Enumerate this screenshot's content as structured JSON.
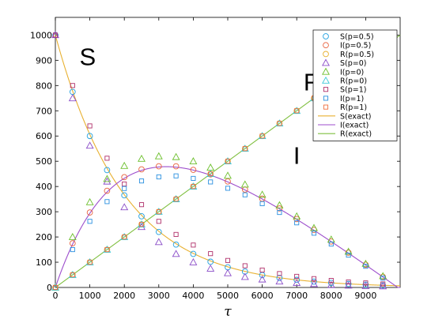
{
  "chart_data": {
    "type": "scatter",
    "xlabel": "τ",
    "ylabel": "",
    "xlim": [
      0,
      10000
    ],
    "ylim": [
      0,
      1070
    ],
    "x_ticks": [
      0,
      1000,
      2000,
      3000,
      4000,
      5000,
      6000,
      7000,
      8000,
      9000
    ],
    "y_ticks": [
      0,
      100,
      200,
      300,
      400,
      500,
      600,
      700,
      800,
      900,
      1000
    ],
    "grid": false,
    "legend_position": "top-right",
    "annotations": [
      {
        "text": "S",
        "x": 700,
        "y": 880
      },
      {
        "text": "R",
        "x": 7200,
        "y": 780
      },
      {
        "text": "I",
        "x": 6900,
        "y": 490
      }
    ],
    "x": [
      0,
      500,
      1000,
      1500,
      2000,
      2500,
      3000,
      3500,
      4000,
      4500,
      5000,
      5500,
      6000,
      6500,
      7000,
      7500,
      8000,
      8500,
      9000,
      9500
    ],
    "series": [
      {
        "name": "S(p=0.5)",
        "marker": "circle",
        "color": "#1f9fe0",
        "values": [
          1000,
          775,
          600,
          465,
          365,
          282,
          220,
          170,
          133,
          102,
          80,
          63,
          49,
          38,
          30,
          23,
          18,
          14,
          11,
          8
        ]
      },
      {
        "name": "I(p=0.5)",
        "marker": "circle",
        "color": "#e8603c",
        "values": [
          0,
          175,
          297,
          383,
          437,
          468,
          480,
          480,
          466,
          448,
          420,
          388,
          352,
          313,
          271,
          228,
          182,
          138,
          90,
          42
        ]
      },
      {
        "name": "R(p=0.5)",
        "marker": "circle",
        "color": "#e8b030",
        "values": [
          0,
          50,
          100,
          150,
          200,
          250,
          300,
          350,
          400,
          450,
          500,
          550,
          600,
          650,
          700,
          750,
          800,
          850,
          900,
          950
        ]
      },
      {
        "name": "S(p=0)",
        "marker": "triangle",
        "color": "#8a4cc8",
        "values": [
          1000,
          750,
          562,
          420,
          318,
          240,
          180,
          133,
          100,
          75,
          57,
          42,
          32,
          24,
          18,
          14,
          10,
          8,
          6,
          5
        ]
      },
      {
        "name": "I(p=0)",
        "marker": "triangle",
        "color": "#6cbf2c",
        "values": [
          0,
          200,
          338,
          430,
          482,
          510,
          520,
          517,
          500,
          475,
          443,
          408,
          368,
          326,
          282,
          236,
          190,
          142,
          94,
          45
        ]
      },
      {
        "name": "R(p=0)",
        "marker": "triangle",
        "color": "#3cc8d8",
        "values": [
          0,
          50,
          100,
          150,
          200,
          250,
          300,
          350,
          400,
          450,
          500,
          550,
          600,
          650,
          700,
          750,
          800,
          850,
          900,
          950
        ]
      },
      {
        "name": "S(p=1)",
        "marker": "square",
        "color": "#b0306a",
        "values": [
          1000,
          800,
          640,
          512,
          410,
          328,
          262,
          210,
          168,
          134,
          107,
          86,
          69,
          55,
          44,
          35,
          28,
          22,
          18,
          14
        ]
      },
      {
        "name": "I(p=1)",
        "marker": "square",
        "color": "#2a90e0",
        "values": [
          0,
          150,
          262,
          340,
          392,
          422,
          438,
          442,
          432,
          418,
          393,
          367,
          332,
          297,
          256,
          215,
          172,
          128,
          84,
          37
        ]
      },
      {
        "name": "R(p=1)",
        "marker": "square",
        "color": "#f07040",
        "values": [
          0,
          50,
          100,
          150,
          200,
          250,
          300,
          350,
          400,
          450,
          500,
          550,
          600,
          650,
          700,
          750,
          800,
          850,
          900,
          950
        ]
      }
    ],
    "lines": [
      {
        "name": "S(exact)",
        "color": "#e8b030",
        "beta": 0.0005,
        "gamma": 0.0001
      },
      {
        "name": "I(exact)",
        "color": "#9c4dcc",
        "beta": 0.0005,
        "gamma": 0.0001
      },
      {
        "name": "R(exact)",
        "color": "#7fbf3f",
        "beta": 0.0005,
        "gamma": 0.0001
      }
    ]
  }
}
